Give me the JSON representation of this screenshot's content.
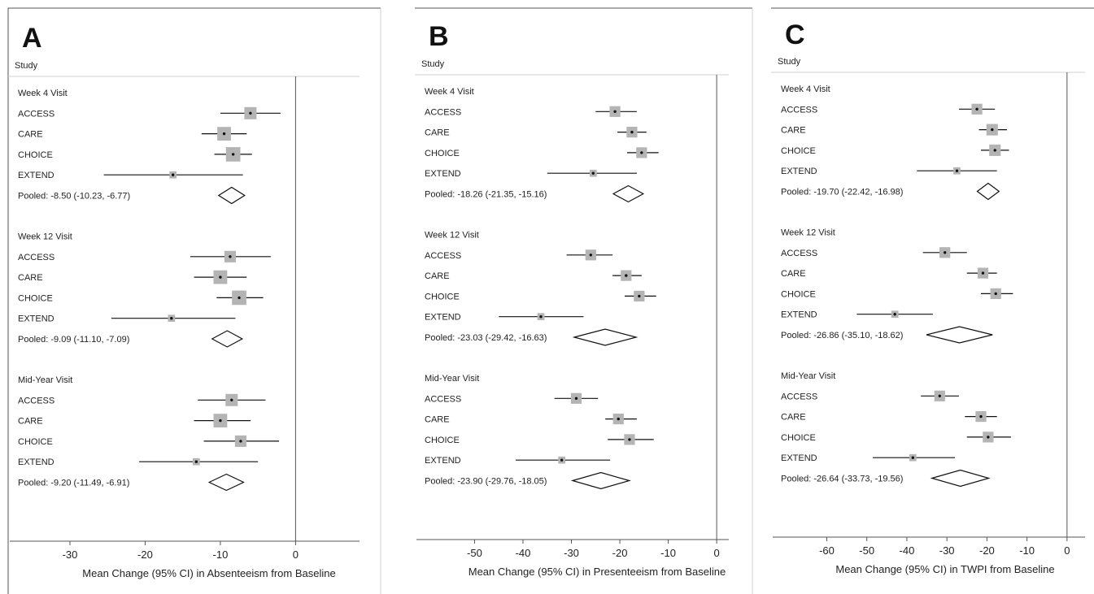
{
  "chart_data": [
    {
      "type": "forest",
      "panel_letter": "A",
      "column_header": "Study",
      "xlabel": "Mean Change (95% CI) in Absenteeism from Baseline",
      "xlim": [
        -38,
        8.5
      ],
      "xticks": [
        -30,
        -20,
        -10,
        0
      ],
      "reference_line": 0,
      "groups": [
        {
          "label": "Week 4 Visit",
          "studies": [
            {
              "name": "ACCESS",
              "estimate": -6.0,
              "lower": -10.0,
              "upper": -2.0,
              "weight": 1.0
            },
            {
              "name": "CARE",
              "estimate": -9.5,
              "lower": -12.5,
              "upper": -6.5,
              "weight": 1.2
            },
            {
              "name": "CHOICE",
              "estimate": -8.3,
              "lower": -10.8,
              "upper": -5.8,
              "weight": 1.3
            },
            {
              "name": "EXTEND",
              "estimate": -16.3,
              "lower": -25.5,
              "upper": -7.0,
              "weight": 0.3
            }
          ],
          "pooled": {
            "label": "Pooled: -8.50 (-10.23, -6.77)",
            "estimate": -8.5,
            "lower": -10.23,
            "upper": -6.77
          }
        },
        {
          "label": "Week 12 Visit",
          "studies": [
            {
              "name": "ACCESS",
              "estimate": -8.7,
              "lower": -14.0,
              "upper": -3.3,
              "weight": 0.9
            },
            {
              "name": "CARE",
              "estimate": -10.0,
              "lower": -13.5,
              "upper": -6.5,
              "weight": 1.2
            },
            {
              "name": "CHOICE",
              "estimate": -7.5,
              "lower": -10.5,
              "upper": -4.3,
              "weight": 1.3
            },
            {
              "name": "EXTEND",
              "estimate": -16.5,
              "lower": -24.5,
              "upper": -8.0,
              "weight": 0.3
            }
          ],
          "pooled": {
            "label": "Pooled: -9.09 (-11.10, -7.09)",
            "estimate": -9.09,
            "lower": -11.1,
            "upper": -7.09
          }
        },
        {
          "label": "Mid-Year Visit",
          "studies": [
            {
              "name": "ACCESS",
              "estimate": -8.5,
              "lower": -13.0,
              "upper": -4.0,
              "weight": 1.0
            },
            {
              "name": "CARE",
              "estimate": -10.0,
              "lower": -13.5,
              "upper": -6.0,
              "weight": 1.2
            },
            {
              "name": "CHOICE",
              "estimate": -7.3,
              "lower": -12.2,
              "upper": -2.2,
              "weight": 0.9
            },
            {
              "name": "EXTEND",
              "estimate": -13.2,
              "lower": -20.8,
              "upper": -5.0,
              "weight": 0.3
            }
          ],
          "pooled": {
            "label": "Pooled: -9.20 (-11.49, -6.91)",
            "estimate": -9.2,
            "lower": -11.49,
            "upper": -6.91
          }
        }
      ]
    },
    {
      "type": "forest",
      "panel_letter": "B",
      "column_header": "Study",
      "xlabel": "Mean Change (95% CI) in Presenteeism from Baseline",
      "xlim": [
        -62,
        2.5
      ],
      "xticks": [
        -50,
        -40,
        -30,
        -20,
        -10,
        0
      ],
      "reference_line": 0,
      "groups": [
        {
          "label": "Week 4 Visit",
          "studies": [
            {
              "name": "ACCESS",
              "estimate": -21.0,
              "lower": -25.0,
              "upper": -16.5,
              "weight": 0.8
            },
            {
              "name": "CARE",
              "estimate": -17.5,
              "lower": -20.5,
              "upper": -14.5,
              "weight": 0.8
            },
            {
              "name": "CHOICE",
              "estimate": -15.5,
              "lower": -18.5,
              "upper": -12.0,
              "weight": 0.8
            },
            {
              "name": "EXTEND",
              "estimate": -25.5,
              "lower": -35.0,
              "upper": -16.5,
              "weight": 0.3
            }
          ],
          "pooled": {
            "label": "Pooled: -18.26 (-21.35, -15.16)",
            "estimate": -18.26,
            "lower": -21.35,
            "upper": -15.16
          }
        },
        {
          "label": "Week 12 Visit",
          "studies": [
            {
              "name": "ACCESS",
              "estimate": -26.0,
              "lower": -31.0,
              "upper": -21.5,
              "weight": 0.8
            },
            {
              "name": "CARE",
              "estimate": -18.7,
              "lower": -21.5,
              "upper": -15.5,
              "weight": 0.8
            },
            {
              "name": "CHOICE",
              "estimate": -16.0,
              "lower": -19.0,
              "upper": -12.5,
              "weight": 0.8
            },
            {
              "name": "EXTEND",
              "estimate": -36.3,
              "lower": -45.0,
              "upper": -27.5,
              "weight": 0.3
            }
          ],
          "pooled": {
            "label": "Pooled: -23.03 (-29.42, -16.63)",
            "estimate": -23.03,
            "lower": -29.42,
            "upper": -16.63
          }
        },
        {
          "label": "Mid-Year Visit",
          "studies": [
            {
              "name": "ACCESS",
              "estimate": -29.0,
              "lower": -33.5,
              "upper": -24.5,
              "weight": 0.8
            },
            {
              "name": "CARE",
              "estimate": -20.3,
              "lower": -23.0,
              "upper": -16.5,
              "weight": 0.8
            },
            {
              "name": "CHOICE",
              "estimate": -18.0,
              "lower": -22.5,
              "upper": -13.0,
              "weight": 0.8
            },
            {
              "name": "EXTEND",
              "estimate": -32.0,
              "lower": -41.5,
              "upper": -22.0,
              "weight": 0.3
            }
          ],
          "pooled": {
            "label": "Pooled: -23.90 (-29.76, -18.05)",
            "estimate": -23.9,
            "lower": -29.76,
            "upper": -18.05
          }
        }
      ]
    },
    {
      "type": "forest",
      "panel_letter": "C",
      "column_header": "Study",
      "xlabel": "Mean Change (95% CI) in TWPI from Baseline",
      "xlim": [
        -73.5,
        4.5
      ],
      "xticks": [
        -60,
        -50,
        -40,
        -30,
        -20,
        -10,
        0
      ],
      "reference_line": 0,
      "groups": [
        {
          "label": "Week 4 Visit",
          "studies": [
            {
              "name": "ACCESS",
              "estimate": -22.5,
              "lower": -27.0,
              "upper": -18.0,
              "weight": 0.8
            },
            {
              "name": "CARE",
              "estimate": -18.7,
              "lower": -22.0,
              "upper": -15.0,
              "weight": 0.9
            },
            {
              "name": "CHOICE",
              "estimate": -18.0,
              "lower": -21.5,
              "upper": -14.5,
              "weight": 0.9
            },
            {
              "name": "EXTEND",
              "estimate": -27.5,
              "lower": -37.5,
              "upper": -17.5,
              "weight": 0.3
            }
          ],
          "pooled": {
            "label": "Pooled: -19.70 (-22.42, -16.98)",
            "estimate": -19.7,
            "lower": -22.42,
            "upper": -16.98
          }
        },
        {
          "label": "Week 12 Visit",
          "studies": [
            {
              "name": "ACCESS",
              "estimate": -30.5,
              "lower": -36.0,
              "upper": -25.0,
              "weight": 0.8
            },
            {
              "name": "CARE",
              "estimate": -21.0,
              "lower": -25.0,
              "upper": -17.5,
              "weight": 0.8
            },
            {
              "name": "CHOICE",
              "estimate": -17.8,
              "lower": -21.5,
              "upper": -13.5,
              "weight": 0.8
            },
            {
              "name": "EXTEND",
              "estimate": -43.0,
              "lower": -52.5,
              "upper": -33.5,
              "weight": 0.3
            }
          ],
          "pooled": {
            "label": "Pooled: -26.86 (-35.10, -18.62)",
            "estimate": -26.86,
            "lower": -35.1,
            "upper": -18.62
          }
        },
        {
          "label": "Mid-Year Visit",
          "studies": [
            {
              "name": "ACCESS",
              "estimate": -31.8,
              "lower": -36.5,
              "upper": -27.0,
              "weight": 0.8
            },
            {
              "name": "CARE",
              "estimate": -21.5,
              "lower": -25.5,
              "upper": -17.5,
              "weight": 0.8
            },
            {
              "name": "CHOICE",
              "estimate": -19.7,
              "lower": -25.0,
              "upper": -14.0,
              "weight": 0.8
            },
            {
              "name": "EXTEND",
              "estimate": -38.5,
              "lower": -48.5,
              "upper": -28.0,
              "weight": 0.3
            }
          ],
          "pooled": {
            "label": "Pooled: -26.64 (-33.73, -19.56)",
            "estimate": -26.64,
            "lower": -33.73,
            "upper": -19.56
          }
        }
      ]
    }
  ],
  "colors": {
    "box_fill": "#b4b4b4",
    "line": "#111111",
    "axis": "#555555",
    "divider": "#d0d0d0",
    "text": "#222222"
  }
}
